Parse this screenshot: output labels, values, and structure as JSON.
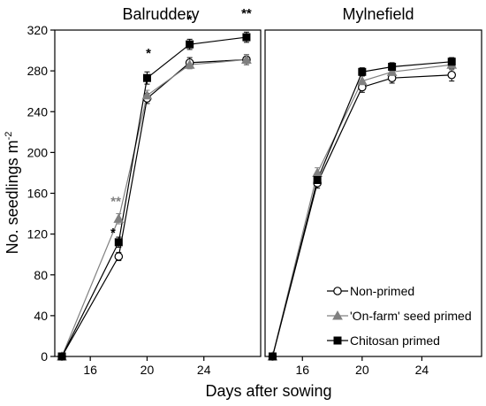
{
  "chart_data": {
    "type": "line",
    "ylabel": "No. seedlings m",
    "ylabel_superscript": "-2",
    "xlabel": "Days after sowing",
    "ylim": [
      0,
      320
    ],
    "yticks": [
      "0",
      "40",
      "80",
      "120",
      "160",
      "200",
      "240",
      "280",
      "320"
    ],
    "xlim": [
      13.5,
      28
    ],
    "grid": false,
    "legend_position": "bottom-right",
    "legend": [
      {
        "label": "Non-primed",
        "marker": "circle-open",
        "color": "#000000"
      },
      {
        "label": "'On-farm' seed primed",
        "marker": "triangle",
        "color": "#808080"
      },
      {
        "label": "Chitosan primed",
        "marker": "square",
        "color": "#000000"
      }
    ],
    "panels": [
      {
        "title": "Balruddery",
        "xticks": [
          "16",
          "20",
          "24"
        ],
        "series": [
          {
            "name": "Non-primed",
            "x": [
              14,
              18,
              20,
              23,
              27
            ],
            "y": [
              0,
              98,
              253,
              288,
              291
            ],
            "err": [
              0,
              4,
              5,
              5,
              5
            ]
          },
          {
            "name": "'On-farm' seed primed",
            "x": [
              14,
              18,
              20,
              23,
              27
            ],
            "y": [
              0,
              135,
              256,
              286,
              291
            ],
            "err": [
              0,
              5,
              5,
              4,
              5
            ]
          },
          {
            "name": "Chitosan primed",
            "x": [
              14,
              18,
              20,
              23,
              27
            ],
            "y": [
              0,
              112,
              273,
              306,
              313
            ],
            "err": [
              0,
              5,
              6,
              5,
              5
            ]
          }
        ],
        "annotations": [
          {
            "text": "**",
            "x": 17.8,
            "y": 148,
            "color": "#808080"
          },
          {
            "text": "*",
            "x": 17.6,
            "y": 117,
            "color": "#000000"
          },
          {
            "text": "*",
            "x": 20.1,
            "y": 293,
            "color": "#000000"
          },
          {
            "text": "*",
            "x": 23.0,
            "y": 326,
            "color": "#000000"
          },
          {
            "text": "**",
            "x": 27.0,
            "y": 332,
            "color": "#000000"
          }
        ]
      },
      {
        "title": "Mylnefield",
        "xticks": [
          "16",
          "20",
          "24"
        ],
        "series": [
          {
            "name": "Non-primed",
            "x": [
              14,
              17,
              20,
              22,
              26
            ],
            "y": [
              0,
              170,
              264,
              273,
              276
            ],
            "err": [
              0,
              5,
              5,
              5,
              6
            ]
          },
          {
            "name": "'On-farm' seed primed",
            "x": [
              14,
              17,
              20,
              22,
              26
            ],
            "y": [
              0,
              180,
              270,
              279,
              286
            ],
            "err": [
              0,
              5,
              5,
              5,
              5
            ]
          },
          {
            "name": "Chitosan primed",
            "x": [
              14,
              17,
              20,
              22,
              26
            ],
            "y": [
              0,
              173,
              279,
              284,
              289
            ],
            "err": [
              0,
              5,
              4,
              4,
              4
            ]
          }
        ],
        "annotations": []
      }
    ]
  }
}
